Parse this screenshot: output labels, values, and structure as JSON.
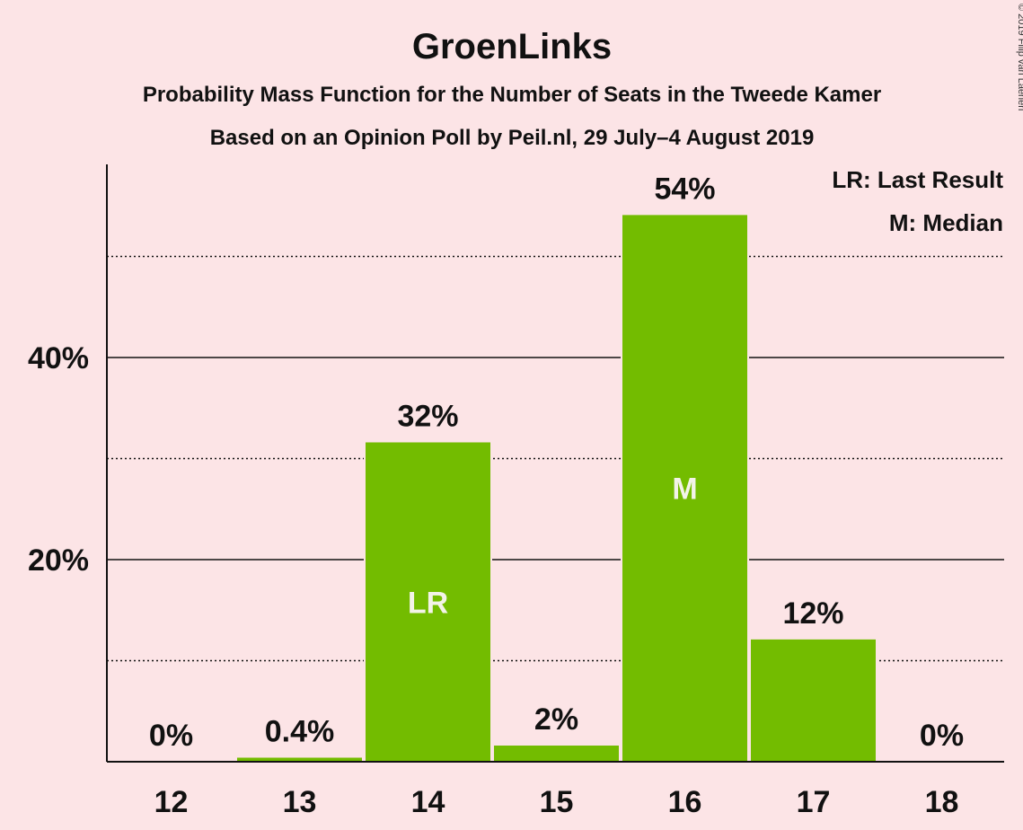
{
  "chart_data": {
    "type": "bar",
    "title": "GroenLinks",
    "subtitle_1": "Probability Mass Function for the Number of Seats in the Tweede Kamer",
    "subtitle_2": "Based on an Opinion Poll by Peil.nl, 29 July–4 August 2019",
    "categories": [
      "12",
      "13",
      "14",
      "15",
      "16",
      "17",
      "18"
    ],
    "values": [
      0,
      0.4,
      31.6,
      1.6,
      54.1,
      12.1,
      0
    ],
    "labels": [
      "0%",
      "0.4%",
      "32%",
      "2%",
      "54%",
      "12%",
      "0%"
    ],
    "bar_marks": [
      "",
      "",
      "LR",
      "",
      "M",
      "",
      ""
    ],
    "ylim": [
      0,
      59
    ],
    "y_ticks": [
      20,
      40
    ],
    "y_tick_labels": [
      "20%",
      "40%"
    ],
    "y_minor_gridlines": [
      10,
      30,
      50
    ],
    "legend": [
      "LR: Last Result",
      "M: Median"
    ],
    "legend_position": "top-right",
    "bar_color": "#73bc00",
    "copyright": "© 2019 Filip van Laenen"
  }
}
